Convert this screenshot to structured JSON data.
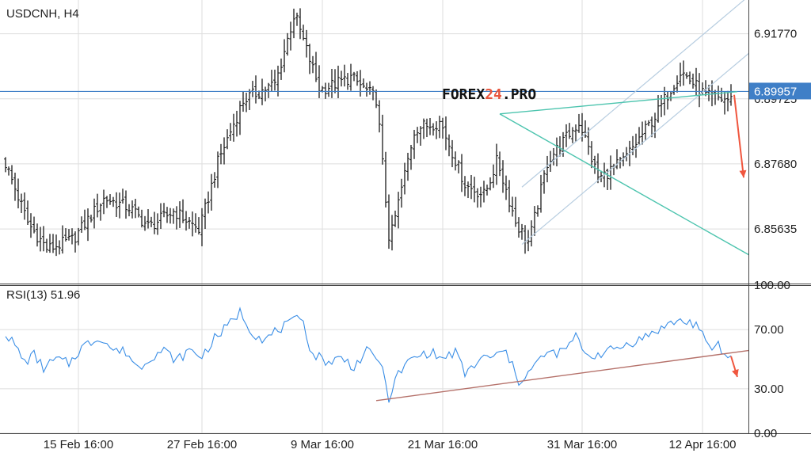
{
  "chart_data": [
    {
      "type": "ohlc",
      "title": "USDCNH, H4",
      "watermark": {
        "prefix": "FOREX",
        "highlight": "24",
        "suffix": ".PRO",
        "highlight_color": "#e8553d"
      },
      "y_ticks": [
        "6.91770",
        "6.89725",
        "6.87680",
        "6.85635"
      ],
      "ylim": [
        6.8392,
        6.9283
      ],
      "current_price": {
        "label": "6.89957",
        "value": 6.89957,
        "color": "#3f7fc7"
      },
      "x_ticks": [
        "15 Feb 16:00",
        "27 Feb 16:00",
        "9 Mar 16:00",
        "21 Mar 16:00",
        "31 Mar 16:00",
        "12 Apr 16:00"
      ],
      "bar_count": 230,
      "segments": [
        [
          0,
          6.879
        ],
        [
          8,
          6.858
        ],
        [
          14,
          6.85
        ],
        [
          22,
          6.853
        ],
        [
          32,
          6.866
        ],
        [
          40,
          6.863
        ],
        [
          46,
          6.857
        ],
        [
          54,
          6.862
        ],
        [
          62,
          6.856
        ],
        [
          68,
          6.878
        ],
        [
          76,
          6.897
        ],
        [
          86,
          6.902
        ],
        [
          92,
          6.924
        ],
        [
          100,
          6.9
        ],
        [
          110,
          6.904
        ],
        [
          118,
          6.897
        ],
        [
          122,
          6.852
        ],
        [
          130,
          6.888
        ],
        [
          138,
          6.89
        ],
        [
          146,
          6.87
        ],
        [
          152,
          6.867
        ],
        [
          156,
          6.878
        ],
        [
          162,
          6.858
        ],
        [
          166,
          6.852
        ],
        [
          172,
          6.878
        ],
        [
          182,
          6.89
        ],
        [
          188,
          6.872
        ],
        [
          196,
          6.878
        ],
        [
          206,
          6.892
        ],
        [
          214,
          6.906
        ],
        [
          222,
          6.898
        ],
        [
          229,
          6.897
        ]
      ],
      "annotations": {
        "channel": {
          "from": [
            163,
            6.8515
          ],
          "to": [
            254,
            6.9278
          ],
          "width": 0.018,
          "color": "#b7cde0"
        },
        "upper_line": {
          "from": [
            156,
            6.8925
          ],
          "to": [
            231,
            6.8995
          ],
          "color": "#4cc4ae"
        },
        "lower_line": {
          "from": [
            156,
            6.8925
          ],
          "to": [
            243,
            6.8435
          ],
          "color": "#4cc4ae"
        },
        "arrow": {
          "from": [
            230,
            6.8985
          ],
          "to": [
            233,
            6.8725
          ],
          "color": "#f0563e"
        }
      }
    },
    {
      "type": "line",
      "title": "RSI(13) 51.96",
      "y_ticks": [
        "100.00",
        "70.00",
        "30.00",
        "0.00"
      ],
      "ylim": [
        0,
        100
      ],
      "color": "#3a8ee6",
      "segments": [
        [
          0,
          68
        ],
        [
          3,
          59
        ],
        [
          6,
          48
        ],
        [
          9,
          53
        ],
        [
          12,
          44
        ],
        [
          16,
          50
        ],
        [
          20,
          47
        ],
        [
          24,
          58
        ],
        [
          30,
          65
        ],
        [
          34,
          56
        ],
        [
          38,
          55
        ],
        [
          42,
          44
        ],
        [
          46,
          52
        ],
        [
          50,
          56
        ],
        [
          54,
          49
        ],
        [
          58,
          56
        ],
        [
          62,
          52
        ],
        [
          66,
          64
        ],
        [
          70,
          72
        ],
        [
          74,
          82
        ],
        [
          78,
          68
        ],
        [
          82,
          63
        ],
        [
          86,
          70
        ],
        [
          90,
          74
        ],
        [
          94,
          79
        ],
        [
          96,
          55
        ],
        [
          102,
          48
        ],
        [
          106,
          51
        ],
        [
          110,
          45
        ],
        [
          114,
          55
        ],
        [
          118,
          50
        ],
        [
          121,
          24
        ],
        [
          124,
          40
        ],
        [
          128,
          50
        ],
        [
          134,
          55
        ],
        [
          138,
          50
        ],
        [
          142,
          55
        ],
        [
          145,
          40
        ],
        [
          150,
          50
        ],
        [
          154,
          52
        ],
        [
          158,
          55
        ],
        [
          162,
          35
        ],
        [
          166,
          43
        ],
        [
          170,
          53
        ],
        [
          176,
          55
        ],
        [
          180,
          65
        ],
        [
          184,
          52
        ],
        [
          190,
          55
        ],
        [
          196,
          60
        ],
        [
          202,
          65
        ],
        [
          206,
          70
        ],
        [
          212,
          76
        ],
        [
          218,
          74
        ],
        [
          222,
          57
        ],
        [
          225,
          60
        ],
        [
          227,
          52
        ],
        [
          229,
          52
        ]
      ],
      "trendline": {
        "from": [
          117,
          22
        ],
        "to": [
          242,
          58
        ],
        "color": "#b5716a"
      },
      "arrow": {
        "from": [
          229,
          52
        ],
        "to": [
          231,
          38
        ],
        "color": "#f0563e"
      }
    }
  ]
}
